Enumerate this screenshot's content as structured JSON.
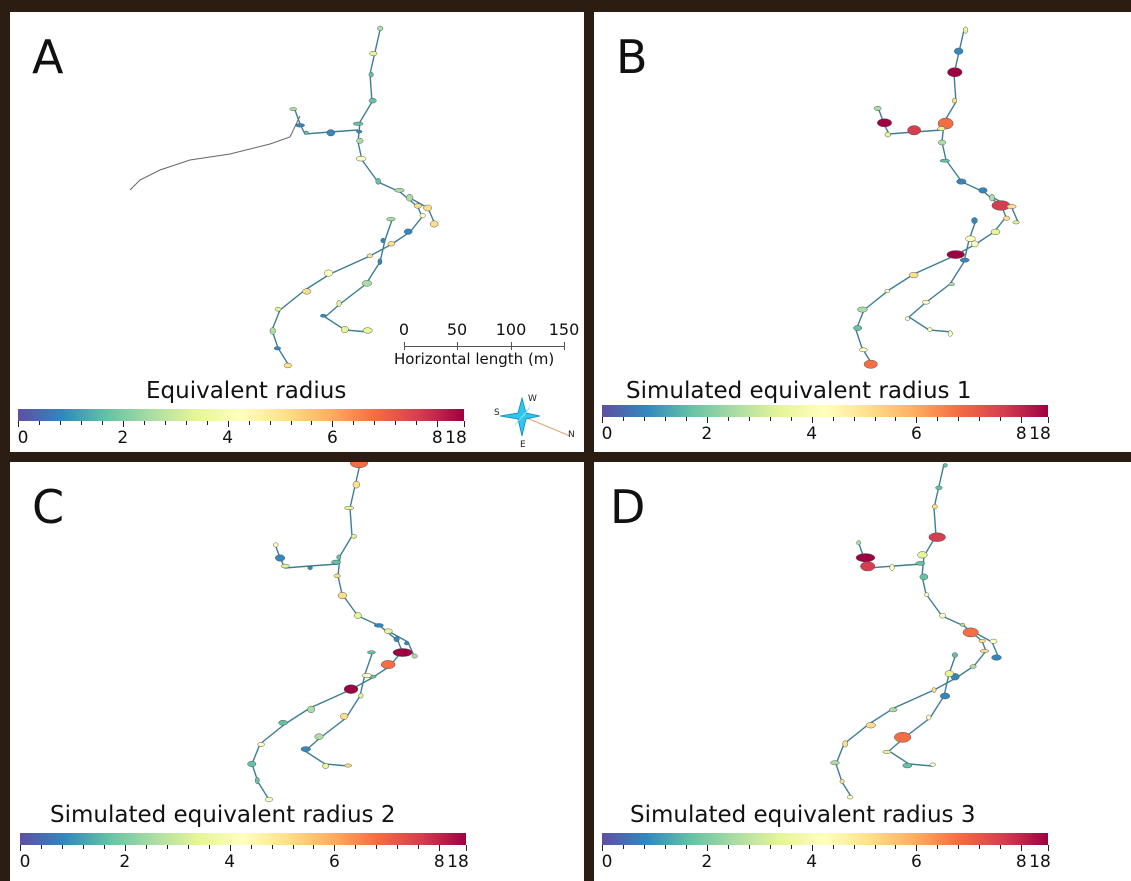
{
  "colorbar": {
    "ticks": [
      "0",
      "2",
      "4",
      "6",
      "8",
      "18"
    ],
    "colors": [
      "#5e4fa2",
      "#3288bd",
      "#66c2a5",
      "#abdda4",
      "#e6f598",
      "#ffffbf",
      "#fee08b",
      "#fdae61",
      "#f46d43",
      "#d53e4f",
      "#9e0142"
    ]
  },
  "panels": [
    {
      "label": "A",
      "title": "Equivalent radius"
    },
    {
      "label": "B",
      "title": "Simulated equivalent radius 1"
    },
    {
      "label": "C",
      "title": "Simulated equivalent radius 2"
    },
    {
      "label": "D",
      "title": "Simulated equivalent radius 3"
    }
  ],
  "scale_bar": {
    "ticks": [
      "0",
      "50",
      "100",
      "150"
    ],
    "caption": "Horizontal length (m)"
  },
  "compass": {
    "s": "S",
    "w": "W",
    "e": "E",
    "n": "N"
  }
}
